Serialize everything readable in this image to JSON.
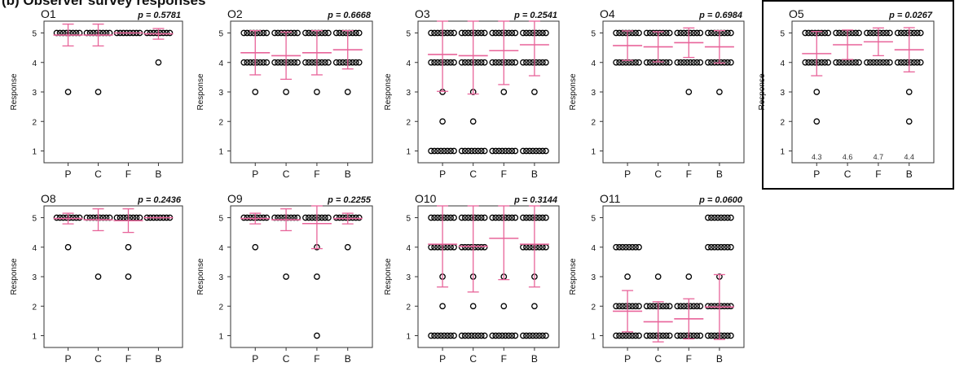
{
  "figure_title": "(b) Observer survey responses",
  "ylabel": "Response",
  "chart_data": [
    {
      "type": "scatter",
      "title": "O1",
      "p_label": "p = 0.5781",
      "categories": [
        "P",
        "C",
        "F",
        "B"
      ],
      "ylim": [
        0.6,
        5.4
      ],
      "yticks": [
        1,
        2,
        3,
        4,
        5
      ],
      "ylabel": "Response",
      "series": [
        {
          "category": "P",
          "mean": 4.93,
          "sd": 0.37,
          "points": [
            5,
            3
          ]
        },
        {
          "category": "C",
          "mean": 4.93,
          "sd": 0.37,
          "points": [
            5,
            3
          ]
        },
        {
          "category": "F",
          "mean": 5.0,
          "sd": 0.0,
          "points": [
            5
          ]
        },
        {
          "category": "B",
          "mean": 4.97,
          "sd": 0.18,
          "points": [
            5,
            4
          ]
        }
      ]
    },
    {
      "type": "scatter",
      "title": "O2",
      "p_label": "p = 0.6668",
      "categories": [
        "P",
        "C",
        "F",
        "B"
      ],
      "ylim": [
        0.6,
        5.4
      ],
      "yticks": [
        1,
        2,
        3,
        4,
        5
      ],
      "ylabel": "Response",
      "series": [
        {
          "category": "P",
          "mean": 4.33,
          "sd": 0.75,
          "points": [
            5,
            4,
            3
          ]
        },
        {
          "category": "C",
          "mean": 4.23,
          "sd": 0.8,
          "points": [
            5,
            4,
            3
          ]
        },
        {
          "category": "F",
          "mean": 4.33,
          "sd": 0.75,
          "points": [
            5,
            4,
            3
          ]
        },
        {
          "category": "B",
          "mean": 4.43,
          "sd": 0.65,
          "points": [
            5,
            4,
            3
          ]
        }
      ]
    },
    {
      "type": "scatter",
      "title": "O3",
      "p_label": "p = 0.2541",
      "categories": [
        "P",
        "C",
        "F",
        "B"
      ],
      "ylim": [
        0.6,
        5.4
      ],
      "yticks": [
        1,
        2,
        3,
        4,
        5
      ],
      "ylabel": "Response",
      "series": [
        {
          "category": "P",
          "mean": 4.27,
          "sd": 1.25,
          "points": [
            5,
            4,
            3,
            2,
            1
          ]
        },
        {
          "category": "C",
          "mean": 4.23,
          "sd": 1.3,
          "points": [
            5,
            4,
            3,
            2,
            1
          ]
        },
        {
          "category": "F",
          "mean": 4.4,
          "sd": 1.15,
          "points": [
            5,
            4,
            3,
            1
          ]
        },
        {
          "category": "B",
          "mean": 4.6,
          "sd": 1.05,
          "points": [
            5,
            4,
            3,
            1
          ]
        }
      ]
    },
    {
      "type": "scatter",
      "title": "O4",
      "p_label": "p = 0.6984",
      "categories": [
        "P",
        "C",
        "F",
        "B"
      ],
      "ylim": [
        0.6,
        5.4
      ],
      "yticks": [
        1,
        2,
        3,
        4,
        5
      ],
      "ylabel": "Response",
      "series": [
        {
          "category": "P",
          "mean": 4.57,
          "sd": 0.5,
          "points": [
            5,
            4
          ]
        },
        {
          "category": "C",
          "mean": 4.53,
          "sd": 0.51,
          "points": [
            5,
            4
          ]
        },
        {
          "category": "F",
          "mean": 4.67,
          "sd": 0.5,
          "points": [
            5,
            4,
            3
          ]
        },
        {
          "category": "B",
          "mean": 4.53,
          "sd": 0.55,
          "points": [
            5,
            4,
            3
          ]
        }
      ]
    },
    {
      "type": "scatter",
      "title": "O5",
      "p_label": "p = 0.0267",
      "categories": [
        "P",
        "C",
        "F",
        "B"
      ],
      "ylim": [
        0.6,
        5.4
      ],
      "yticks": [
        1,
        2,
        3,
        4,
        5
      ],
      "ylabel": "Response",
      "highlighted": true,
      "mean_labels": [
        "4.3",
        "4.6",
        "4.7",
        "4.4"
      ],
      "series": [
        {
          "category": "P",
          "mean": 4.3,
          "sd": 0.75,
          "points": [
            5,
            4,
            3,
            2
          ]
        },
        {
          "category": "C",
          "mean": 4.6,
          "sd": 0.5,
          "points": [
            5,
            4
          ]
        },
        {
          "category": "F",
          "mean": 4.7,
          "sd": 0.47,
          "points": [
            5,
            4
          ]
        },
        {
          "category": "B",
          "mean": 4.43,
          "sd": 0.75,
          "points": [
            5,
            4,
            3,
            2
          ]
        }
      ]
    },
    {
      "type": "scatter",
      "title": "O8",
      "p_label": "p = 0.2436",
      "categories": [
        "P",
        "C",
        "F",
        "B"
      ],
      "ylim": [
        0.6,
        5.4
      ],
      "yticks": [
        1,
        2,
        3,
        4,
        5
      ],
      "ylabel": "Response",
      "series": [
        {
          "category": "P",
          "mean": 4.97,
          "sd": 0.18,
          "points": [
            5,
            4
          ]
        },
        {
          "category": "C",
          "mean": 4.93,
          "sd": 0.37,
          "points": [
            5,
            3
          ]
        },
        {
          "category": "F",
          "mean": 4.9,
          "sd": 0.4,
          "points": [
            5,
            4,
            3
          ]
        },
        {
          "category": "B",
          "mean": 5.0,
          "sd": 0.0,
          "points": [
            5
          ]
        }
      ]
    },
    {
      "type": "scatter",
      "title": "O9",
      "p_label": "p = 0.2255",
      "categories": [
        "P",
        "C",
        "F",
        "B"
      ],
      "ylim": [
        0.6,
        5.4
      ],
      "yticks": [
        1,
        2,
        3,
        4,
        5
      ],
      "ylabel": "Response",
      "series": [
        {
          "category": "P",
          "mean": 4.97,
          "sd": 0.18,
          "points": [
            5,
            4
          ]
        },
        {
          "category": "C",
          "mean": 4.93,
          "sd": 0.37,
          "points": [
            5,
            3
          ]
        },
        {
          "category": "F",
          "mean": 4.8,
          "sd": 0.85,
          "points": [
            5,
            4,
            3,
            1
          ]
        },
        {
          "category": "B",
          "mean": 4.97,
          "sd": 0.18,
          "points": [
            5,
            4
          ]
        }
      ]
    },
    {
      "type": "scatter",
      "title": "O10",
      "p_label": "p = 0.3144",
      "categories": [
        "P",
        "C",
        "F",
        "B"
      ],
      "ylim": [
        0.6,
        5.4
      ],
      "yticks": [
        1,
        2,
        3,
        4,
        5
      ],
      "ylabel": "Response",
      "series": [
        {
          "category": "P",
          "mean": 4.1,
          "sd": 1.45,
          "points": [
            5,
            4,
            3,
            2,
            1
          ]
        },
        {
          "category": "C",
          "mean": 4.03,
          "sd": 1.55,
          "points": [
            5,
            4,
            3,
            2,
            1
          ]
        },
        {
          "category": "F",
          "mean": 4.3,
          "sd": 1.4,
          "points": [
            5,
            3,
            2,
            1
          ]
        },
        {
          "category": "B",
          "mean": 4.1,
          "sd": 1.45,
          "points": [
            5,
            4,
            3,
            2,
            1
          ]
        }
      ]
    },
    {
      "type": "scatter",
      "title": "O11",
      "p_label": "p = 0.0600",
      "categories": [
        "P",
        "C",
        "F",
        "B"
      ],
      "ylim": [
        0.6,
        5.4
      ],
      "yticks": [
        1,
        2,
        3,
        4,
        5
      ],
      "ylabel": "Response",
      "series": [
        {
          "category": "P",
          "mean": 1.83,
          "sd": 0.7,
          "points": [
            4,
            3,
            2,
            1
          ]
        },
        {
          "category": "C",
          "mean": 1.47,
          "sd": 0.68,
          "points": [
            3,
            2,
            1
          ]
        },
        {
          "category": "F",
          "mean": 1.57,
          "sd": 0.68,
          "points": [
            3,
            2,
            1
          ]
        },
        {
          "category": "B",
          "mean": 1.97,
          "sd": 1.1,
          "points": [
            5,
            4,
            3,
            2,
            1
          ]
        }
      ]
    }
  ],
  "colors": {
    "mean_marker": "#e8649a",
    "points": "#000000",
    "frame": "#333333",
    "text": "#111111"
  }
}
